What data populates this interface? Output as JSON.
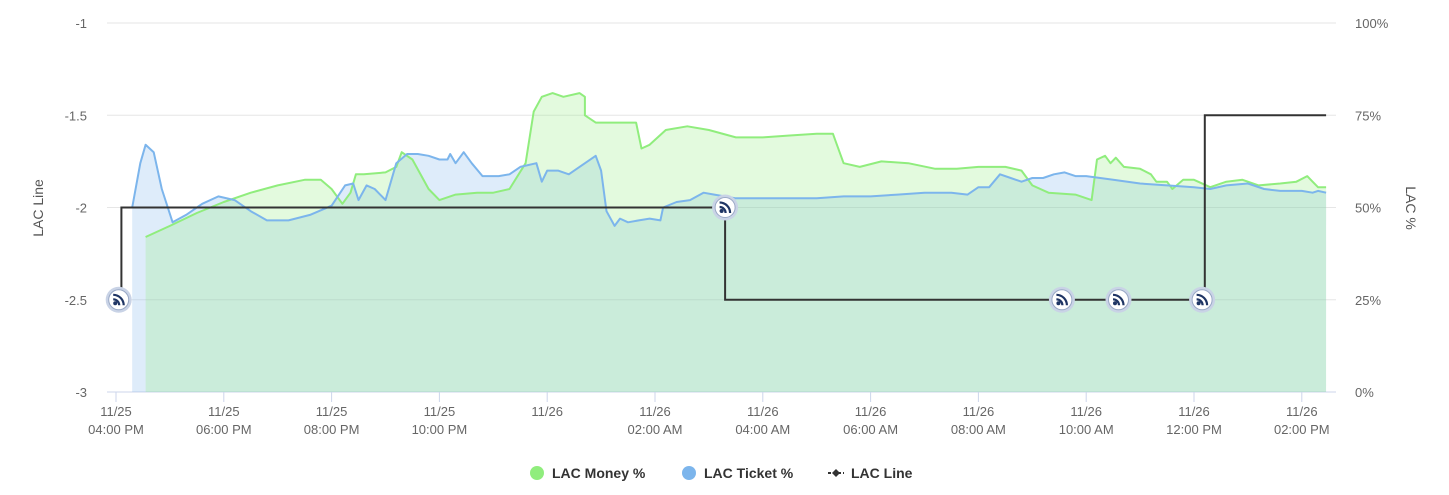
{
  "chart_data": {
    "type": "area",
    "y_left": {
      "label": "LAC Line",
      "ticks": [
        "-1",
        "-1.5",
        "-2",
        "-2.5",
        "-3"
      ],
      "range": [
        -3,
        -1
      ]
    },
    "y_right": {
      "label": "LAC %",
      "ticks": [
        "100%",
        "75%",
        "50%",
        "25%",
        "0%"
      ],
      "range": [
        0,
        100
      ]
    },
    "x_ticks": [
      {
        "d": "11/25",
        "t": "04:00 PM",
        "h": 0
      },
      {
        "d": "11/25",
        "t": "06:00 PM",
        "h": 2
      },
      {
        "d": "11/25",
        "t": "08:00 PM",
        "h": 4
      },
      {
        "d": "11/25",
        "t": "10:00 PM",
        "h": 6
      },
      {
        "d": "11/26",
        "t": "",
        "h": 8
      },
      {
        "d": "11/26",
        "t": "02:00 AM",
        "h": 10
      },
      {
        "d": "11/26",
        "t": "04:00 AM",
        "h": 12
      },
      {
        "d": "11/26",
        "t": "06:00 AM",
        "h": 14
      },
      {
        "d": "11/26",
        "t": "08:00 AM",
        "h": 16
      },
      {
        "d": "11/26",
        "t": "10:00 AM",
        "h": 18
      },
      {
        "d": "11/26",
        "t": "12:00 PM",
        "h": 20
      },
      {
        "d": "11/26",
        "t": "02:00 PM",
        "h": 22
      }
    ],
    "x_range_hours_from_4pm": [
      -0.2,
      22.55
    ],
    "series": [
      {
        "name": "LAC Money %",
        "color": "#90ed7d",
        "fill": "#e2f8dd",
        "points": [
          [
            0.55,
            42
          ],
          [
            1.0,
            45
          ],
          [
            1.5,
            48.5
          ],
          [
            2.0,
            51.5
          ],
          [
            2.5,
            54
          ],
          [
            3.0,
            56
          ],
          [
            3.5,
            57.5
          ],
          [
            3.8,
            57.5
          ],
          [
            4.0,
            55
          ],
          [
            4.2,
            51
          ],
          [
            4.35,
            54
          ],
          [
            4.45,
            59
          ],
          [
            4.6,
            59
          ],
          [
            5.0,
            59.5
          ],
          [
            5.2,
            61
          ],
          [
            5.3,
            65
          ],
          [
            5.5,
            63
          ],
          [
            5.8,
            55
          ],
          [
            6.0,
            52
          ],
          [
            6.3,
            53.5
          ],
          [
            6.7,
            54
          ],
          [
            7.0,
            54
          ],
          [
            7.3,
            55
          ],
          [
            7.6,
            62
          ],
          [
            7.75,
            76
          ],
          [
            7.9,
            80
          ],
          [
            8.1,
            81
          ],
          [
            8.3,
            80
          ],
          [
            8.6,
            81
          ],
          [
            8.7,
            80
          ],
          [
            8.7,
            75
          ],
          [
            8.9,
            73
          ],
          [
            9.3,
            73
          ],
          [
            9.65,
            73
          ],
          [
            9.75,
            66
          ],
          [
            9.9,
            67
          ],
          [
            10.2,
            71
          ],
          [
            10.6,
            72
          ],
          [
            11.0,
            71
          ],
          [
            11.5,
            69
          ],
          [
            12.0,
            69
          ],
          [
            12.5,
            69.5
          ],
          [
            13.0,
            70
          ],
          [
            13.3,
            70
          ],
          [
            13.5,
            62
          ],
          [
            13.8,
            61
          ],
          [
            14.2,
            62.5
          ],
          [
            14.7,
            62
          ],
          [
            15.2,
            60.5
          ],
          [
            15.6,
            60.5
          ],
          [
            16.0,
            61
          ],
          [
            16.5,
            61
          ],
          [
            16.8,
            60
          ],
          [
            17.0,
            56
          ],
          [
            17.3,
            54
          ],
          [
            17.8,
            53.5
          ],
          [
            18.1,
            52
          ],
          [
            18.2,
            63
          ],
          [
            18.35,
            64
          ],
          [
            18.45,
            62
          ],
          [
            18.55,
            63.5
          ],
          [
            18.7,
            61
          ],
          [
            19.0,
            60.5
          ],
          [
            19.2,
            59
          ],
          [
            19.3,
            57
          ],
          [
            19.5,
            57
          ],
          [
            19.6,
            55
          ],
          [
            19.8,
            57.5
          ],
          [
            20.0,
            57.5
          ],
          [
            20.3,
            55.5
          ],
          [
            20.6,
            57
          ],
          [
            20.9,
            57.5
          ],
          [
            21.2,
            56
          ],
          [
            21.6,
            56.5
          ],
          [
            21.9,
            57
          ],
          [
            22.1,
            58.5
          ],
          [
            22.2,
            57
          ],
          [
            22.3,
            55.5
          ],
          [
            22.45,
            55.5
          ]
        ]
      },
      {
        "name": "LAC Ticket %",
        "color": "#7cb5ec",
        "fill": "#dce9f7",
        "points": [
          [
            0.3,
            50
          ],
          [
            0.45,
            62
          ],
          [
            0.55,
            67
          ],
          [
            0.7,
            65
          ],
          [
            0.85,
            55
          ],
          [
            1.05,
            46
          ],
          [
            1.3,
            48
          ],
          [
            1.6,
            51
          ],
          [
            1.9,
            53
          ],
          [
            2.2,
            52
          ],
          [
            2.5,
            49
          ],
          [
            2.8,
            46.5
          ],
          [
            3.2,
            46.5
          ],
          [
            3.6,
            48
          ],
          [
            4.0,
            50.5
          ],
          [
            4.25,
            56
          ],
          [
            4.4,
            56.5
          ],
          [
            4.5,
            52
          ],
          [
            4.65,
            56
          ],
          [
            4.8,
            55
          ],
          [
            5.0,
            52
          ],
          [
            5.2,
            62
          ],
          [
            5.4,
            64.5
          ],
          [
            5.6,
            64.5
          ],
          [
            5.8,
            64
          ],
          [
            6.0,
            63
          ],
          [
            6.15,
            63
          ],
          [
            6.2,
            64.5
          ],
          [
            6.3,
            62
          ],
          [
            6.45,
            65
          ],
          [
            6.6,
            62
          ],
          [
            6.8,
            58.5
          ],
          [
            7.1,
            58.5
          ],
          [
            7.3,
            59
          ],
          [
            7.5,
            61
          ],
          [
            7.8,
            62
          ],
          [
            7.9,
            57
          ],
          [
            8.0,
            60
          ],
          [
            8.2,
            60
          ],
          [
            8.4,
            59
          ],
          [
            8.6,
            61
          ],
          [
            8.9,
            64
          ],
          [
            9.0,
            60
          ],
          [
            9.1,
            49
          ],
          [
            9.25,
            45
          ],
          [
            9.35,
            47
          ],
          [
            9.5,
            46
          ],
          [
            9.7,
            46.5
          ],
          [
            9.9,
            47
          ],
          [
            10.1,
            46.5
          ],
          [
            10.15,
            50
          ],
          [
            10.4,
            51.5
          ],
          [
            10.65,
            52
          ],
          [
            10.9,
            54
          ],
          [
            11.1,
            53.5
          ],
          [
            11.5,
            52.5
          ],
          [
            12.0,
            52.5
          ],
          [
            12.5,
            52.5
          ],
          [
            13.0,
            52.5
          ],
          [
            13.5,
            53
          ],
          [
            14.0,
            53
          ],
          [
            14.5,
            53.5
          ],
          [
            15.0,
            54
          ],
          [
            15.5,
            54
          ],
          [
            15.8,
            53.5
          ],
          [
            16.0,
            55.5
          ],
          [
            16.2,
            55.5
          ],
          [
            16.4,
            59
          ],
          [
            16.6,
            58
          ],
          [
            16.8,
            57
          ],
          [
            17.0,
            58
          ],
          [
            17.2,
            58
          ],
          [
            17.4,
            59
          ],
          [
            17.6,
            59.5
          ],
          [
            17.8,
            58.5
          ],
          [
            18.0,
            58.5
          ],
          [
            18.5,
            57.5
          ],
          [
            19.0,
            56.5
          ],
          [
            19.5,
            56
          ],
          [
            20.0,
            55.5
          ],
          [
            20.3,
            55
          ],
          [
            20.6,
            56
          ],
          [
            21.0,
            56.5
          ],
          [
            21.3,
            55
          ],
          [
            21.6,
            54.5
          ],
          [
            22.0,
            54.5
          ],
          [
            22.2,
            54
          ],
          [
            22.3,
            54.5
          ],
          [
            22.45,
            54
          ]
        ]
      },
      {
        "name": "LAC Line",
        "color": "#333333",
        "points": [
          [
            0.05,
            -2.5
          ],
          [
            0.1,
            -2.5
          ],
          [
            0.1,
            -2.0
          ],
          [
            11.3,
            -2.0
          ],
          [
            11.3,
            -2.5
          ],
          [
            20.2,
            -2.5
          ],
          [
            20.2,
            -1.5
          ],
          [
            22.45,
            -1.5
          ]
        ]
      }
    ],
    "markers": [
      {
        "h": 0.05,
        "v": -2.5
      },
      {
        "h": 11.3,
        "v": -2.0
      },
      {
        "h": 17.55,
        "v": -2.5
      },
      {
        "h": 18.6,
        "v": -2.5
      },
      {
        "h": 20.15,
        "v": -2.5
      }
    ],
    "legend": {
      "placement": "bottom-center",
      "items": [
        {
          "label": "LAC Money %",
          "color": "#90ed7d",
          "symbol": "circle"
        },
        {
          "label": "LAC Ticket %",
          "color": "#7cb5ec",
          "symbol": "circle"
        },
        {
          "label": "LAC Line",
          "color": "#333333",
          "symbol": "line-diamond"
        }
      ]
    },
    "grid": true
  }
}
